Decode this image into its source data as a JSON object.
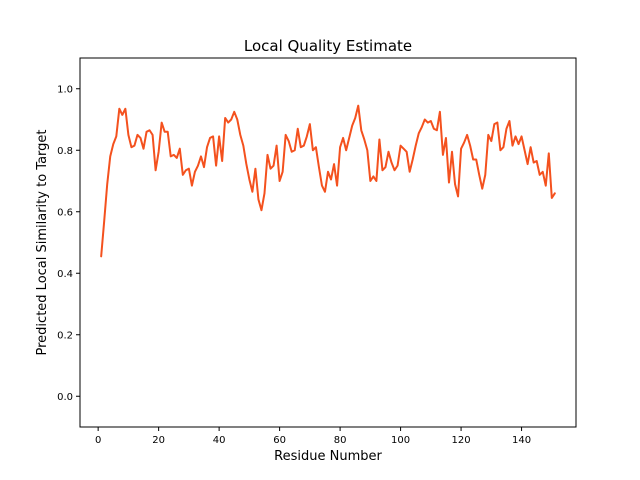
{
  "chart_data": {
    "type": "line",
    "title": "Local Quality Estimate",
    "xlabel": "Residue Number",
    "ylabel": "Predicted Local Similarity to Target",
    "xlim": [
      -6,
      158
    ],
    "ylim": [
      -0.1,
      1.1
    ],
    "xticks": [
      0,
      20,
      40,
      60,
      80,
      100,
      120,
      140
    ],
    "yticks": [
      0.0,
      0.2,
      0.4,
      0.6,
      0.8,
      1.0
    ],
    "ytick_labels": [
      "0.0",
      "0.2",
      "0.4",
      "0.6",
      "0.8",
      "1.0"
    ],
    "grid": false,
    "series": [
      {
        "color": "#f4511e",
        "x": [
          1,
          2,
          3,
          4,
          5,
          6,
          7,
          8,
          9,
          10,
          11,
          12,
          13,
          14,
          15,
          16,
          17,
          18,
          19,
          20,
          21,
          22,
          23,
          24,
          25,
          26,
          27,
          28,
          29,
          30,
          31,
          32,
          33,
          34,
          35,
          36,
          37,
          38,
          39,
          40,
          41,
          42,
          43,
          44,
          45,
          46,
          47,
          48,
          49,
          50,
          51,
          52,
          53,
          54,
          55,
          56,
          57,
          58,
          59,
          60,
          61,
          62,
          63,
          64,
          65,
          66,
          67,
          68,
          69,
          70,
          71,
          72,
          73,
          74,
          75,
          76,
          77,
          78,
          79,
          80,
          81,
          82,
          83,
          84,
          85,
          86,
          87,
          88,
          89,
          90,
          91,
          92,
          93,
          94,
          95,
          96,
          97,
          98,
          99,
          100,
          101,
          102,
          103,
          104,
          105,
          106,
          107,
          108,
          109,
          110,
          111,
          112,
          113,
          114,
          115,
          116,
          117,
          118,
          119,
          120,
          121,
          122,
          123,
          124,
          125,
          126,
          127,
          128,
          129,
          130,
          131,
          132,
          133,
          134,
          135,
          136,
          137,
          138,
          139,
          140,
          141,
          142,
          143,
          144,
          145,
          146,
          147,
          148,
          149,
          150,
          151
        ],
        "y": [
          0.455,
          0.57,
          0.69,
          0.78,
          0.82,
          0.845,
          0.935,
          0.915,
          0.935,
          0.85,
          0.81,
          0.815,
          0.85,
          0.84,
          0.805,
          0.86,
          0.865,
          0.85,
          0.735,
          0.795,
          0.89,
          0.86,
          0.86,
          0.78,
          0.785,
          0.775,
          0.805,
          0.72,
          0.735,
          0.74,
          0.685,
          0.73,
          0.75,
          0.78,
          0.745,
          0.81,
          0.84,
          0.845,
          0.75,
          0.845,
          0.765,
          0.905,
          0.89,
          0.9,
          0.925,
          0.9,
          0.85,
          0.815,
          0.755,
          0.705,
          0.665,
          0.74,
          0.64,
          0.605,
          0.66,
          0.785,
          0.74,
          0.75,
          0.815,
          0.7,
          0.73,
          0.85,
          0.83,
          0.795,
          0.8,
          0.87,
          0.81,
          0.815,
          0.845,
          0.885,
          0.8,
          0.81,
          0.745,
          0.685,
          0.665,
          0.73,
          0.705,
          0.755,
          0.685,
          0.81,
          0.84,
          0.8,
          0.84,
          0.88,
          0.905,
          0.945,
          0.865,
          0.835,
          0.8,
          0.7,
          0.715,
          0.7,
          0.835,
          0.735,
          0.745,
          0.795,
          0.76,
          0.735,
          0.75,
          0.815,
          0.805,
          0.795,
          0.73,
          0.77,
          0.815,
          0.855,
          0.875,
          0.9,
          0.89,
          0.895,
          0.87,
          0.865,
          0.925,
          0.785,
          0.84,
          0.695,
          0.795,
          0.69,
          0.65,
          0.805,
          0.825,
          0.85,
          0.815,
          0.77,
          0.77,
          0.72,
          0.675,
          0.72,
          0.85,
          0.83,
          0.885,
          0.89,
          0.8,
          0.81,
          0.87,
          0.895,
          0.815,
          0.845,
          0.82,
          0.845,
          0.8,
          0.755,
          0.81,
          0.76,
          0.765,
          0.72,
          0.73,
          0.685,
          0.79,
          0.645,
          0.66
        ]
      }
    ]
  }
}
